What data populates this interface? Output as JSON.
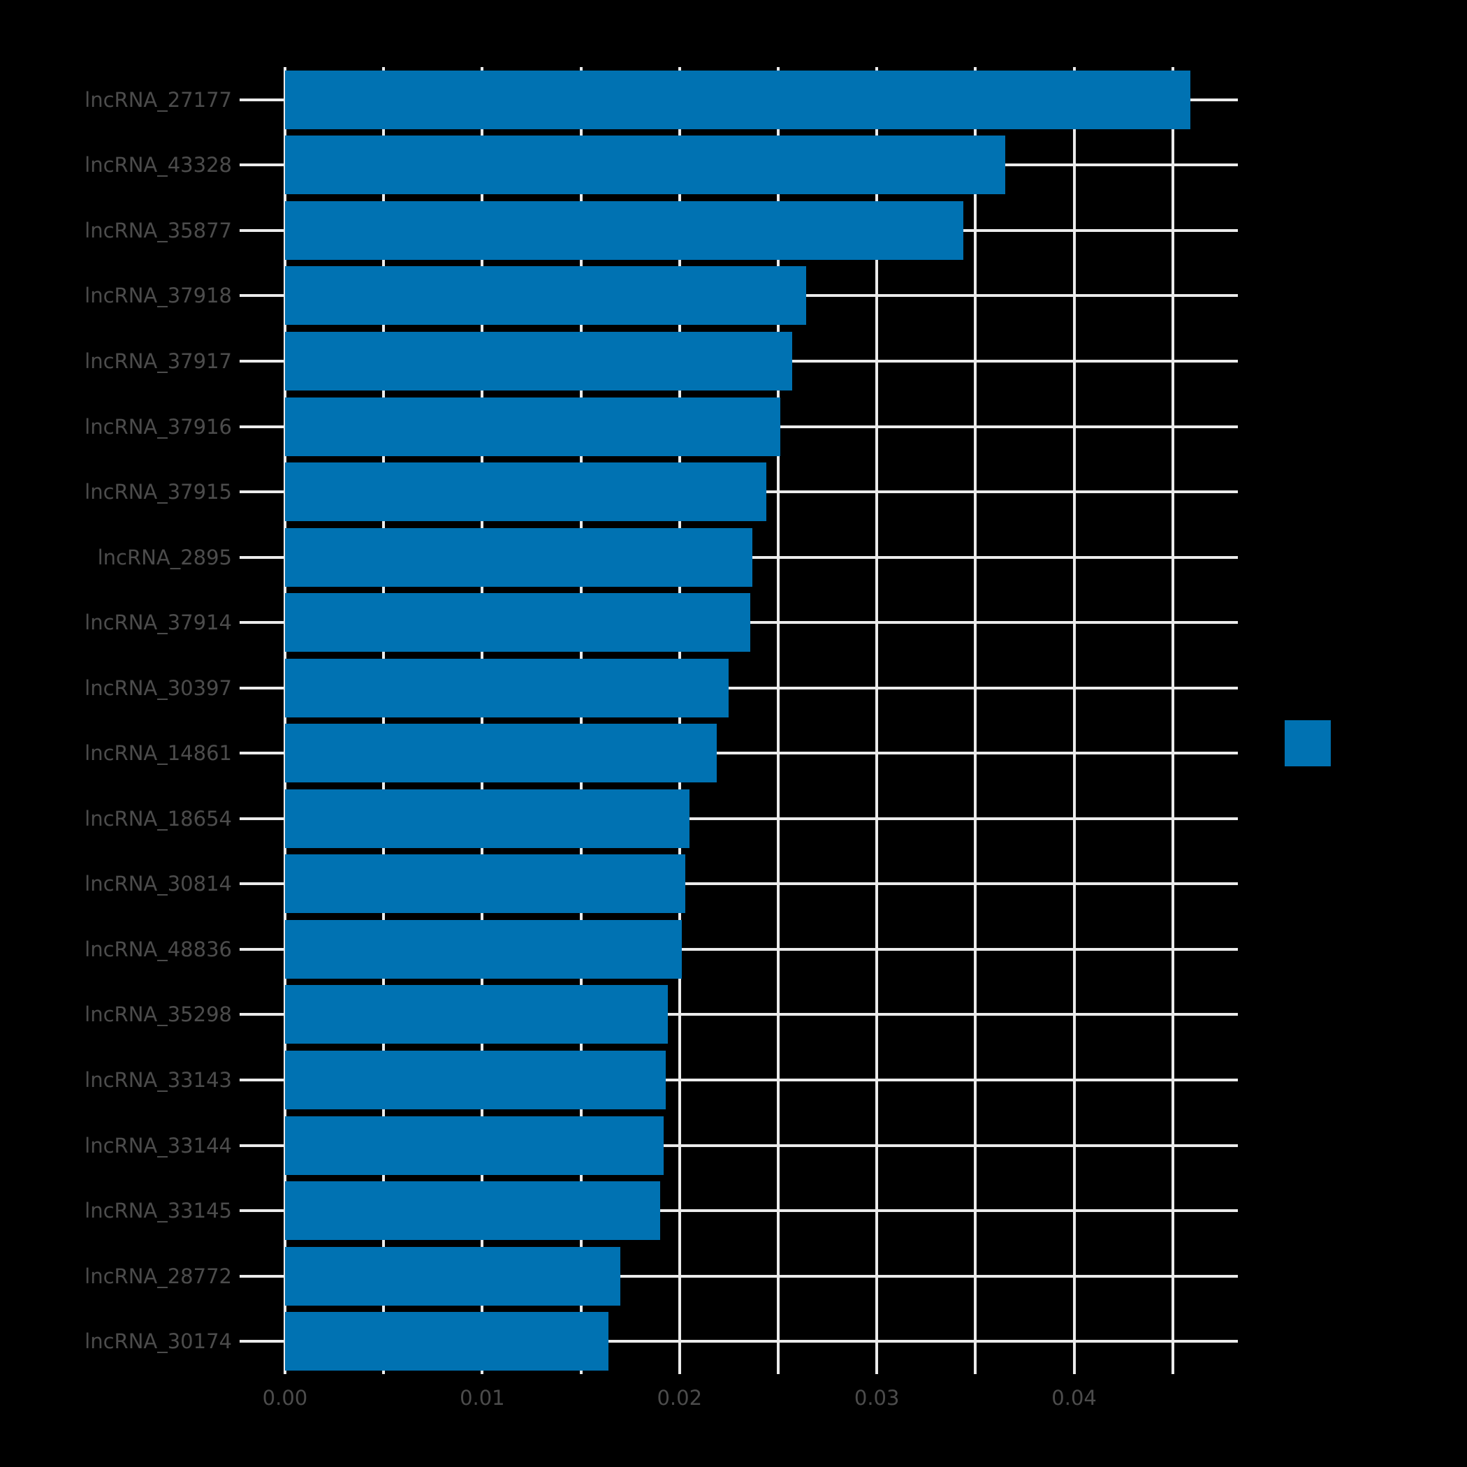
{
  "chart_data": {
    "type": "bar",
    "orientation": "horizontal",
    "title": "",
    "xlabel": "",
    "ylabel": "",
    "categories": [
      "lncRNA_27177",
      "lncRNA_43328",
      "lncRNA_35877",
      "lncRNA_37918",
      "lncRNA_37917",
      "lncRNA_37916",
      "lncRNA_37915",
      "lncRNA_2895",
      "lncRNA_37914",
      "lncRNA_30397",
      "lncRNA_14861",
      "lncRNA_18654",
      "lncRNA_30814",
      "lncRNA_48836",
      "lncRNA_35298",
      "lncRNA_33143",
      "lncRNA_33144",
      "lncRNA_33145",
      "lncRNA_28772",
      "lncRNA_30174"
    ],
    "values": [
      0.0459,
      0.0365,
      0.0344,
      0.0264,
      0.0257,
      0.0251,
      0.0244,
      0.0237,
      0.0236,
      0.0225,
      0.0219,
      0.0205,
      0.0203,
      0.0201,
      0.0194,
      0.0193,
      0.0192,
      0.019,
      0.017,
      0.0164
    ],
    "xlim": [
      -0.0023,
      0.0483
    ],
    "x_ticks": [
      0.0,
      0.01,
      0.02,
      0.03,
      0.04
    ],
    "x_tick_labels": [
      "0.00",
      "0.01",
      "0.02",
      "0.03",
      "0.04"
    ],
    "x_gridline_interval": 0.005,
    "x_gridlines": [
      0.0,
      0.005,
      0.01,
      0.015,
      0.02,
      0.025,
      0.03,
      0.035,
      0.04,
      0.045
    ],
    "grid": "on",
    "legend_position": "right",
    "legend_label": "",
    "colors": {
      "bar": "#0072B2",
      "background": "#000000",
      "gridline": "#EBEBEB",
      "axis_text": "#4C4C4C"
    }
  }
}
